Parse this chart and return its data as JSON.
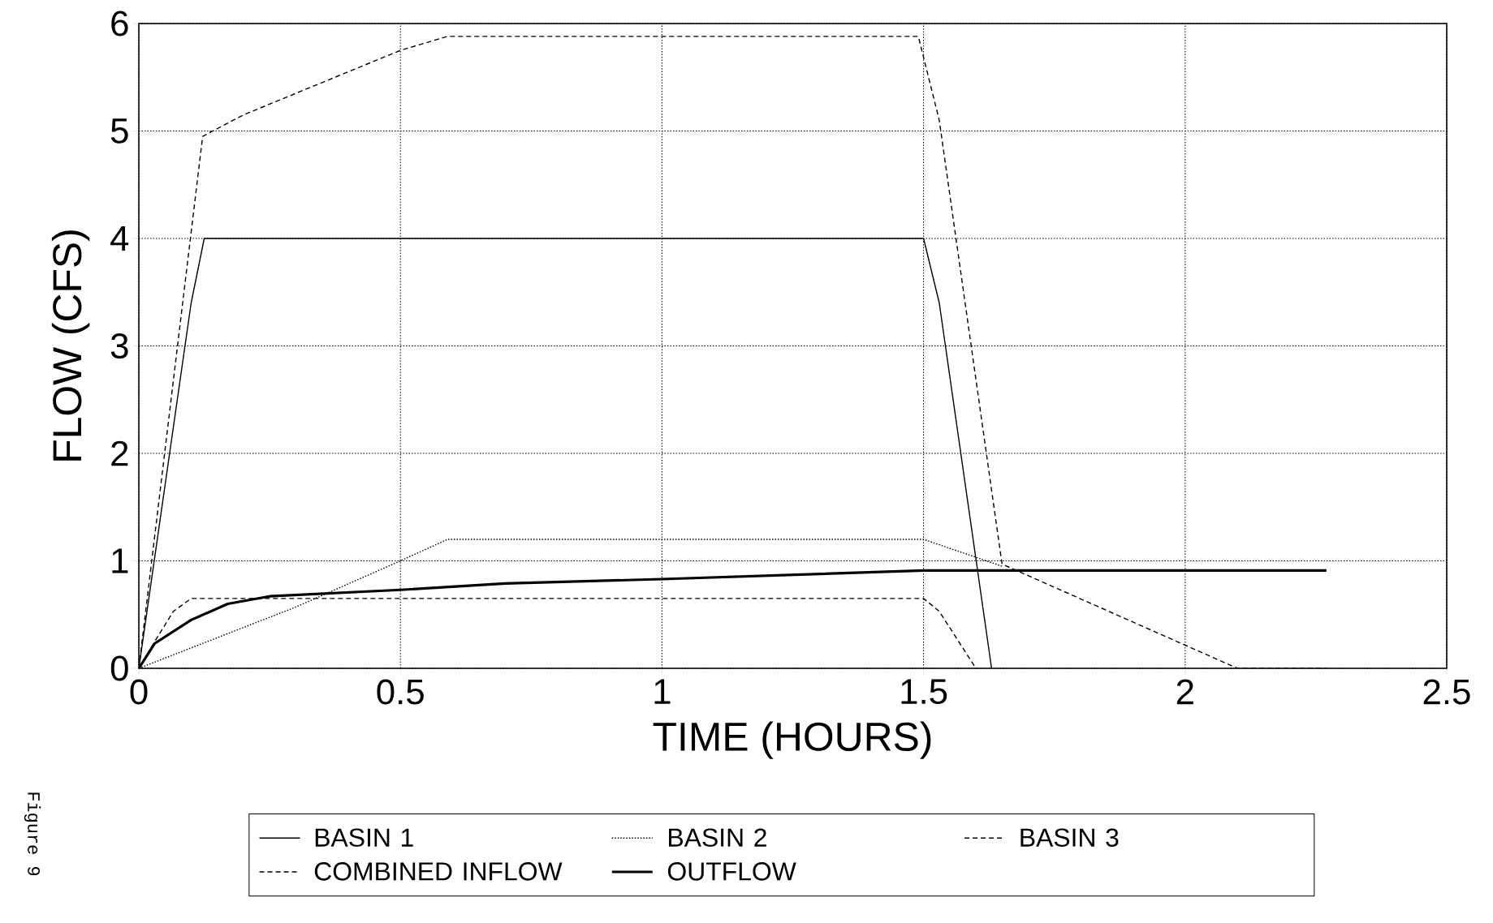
{
  "chart_data": {
    "type": "line",
    "xlabel": "TIME (HOURS)",
    "ylabel": "FLOW (CFS)",
    "xlim": [
      0,
      2.5
    ],
    "ylim": [
      0,
      6
    ],
    "xticks": [
      0,
      0.5,
      1,
      1.5,
      2,
      2.5
    ],
    "yticks": [
      0,
      1,
      2,
      3,
      4,
      5,
      6
    ],
    "grid": true,
    "legend": "bottom",
    "annotations": [
      "Figure 9"
    ],
    "series": [
      {
        "name": "BASIN 1",
        "color": "#000000",
        "line_style": "solid",
        "x": [
          0,
          0.1,
          0.125,
          1.5,
          1.53,
          1.63
        ],
        "values": [
          0,
          3.4,
          4,
          4,
          3.4,
          0
        ]
      },
      {
        "name": "BASIN 2",
        "color": "#000000",
        "line_style": "dotted",
        "x": [
          0,
          0.3,
          0.5,
          0.59,
          1.5,
          1.65
        ],
        "values": [
          0,
          0.57,
          1.0,
          1.2,
          1.2,
          0.95
        ]
      },
      {
        "name": "BASIN 3",
        "color": "#000000",
        "line_style": "dashed",
        "x": [
          0,
          0.033,
          0.066,
          0.1,
          1.5,
          1.53,
          1.6
        ],
        "values": [
          0,
          0.27,
          0.53,
          0.65,
          0.65,
          0.53,
          0
        ]
      },
      {
        "name": "COMBINED INFLOW",
        "color": "#000000",
        "line_style": "dashed",
        "x": [
          0,
          0.122,
          0.2,
          0.3,
          0.4,
          0.5,
          0.59,
          1.49,
          1.53,
          1.65,
          2.1,
          2.27
        ],
        "values": [
          0,
          4.95,
          5.15,
          5.35,
          5.55,
          5.75,
          5.88,
          5.88,
          5.1,
          0.97,
          0,
          0
        ]
      },
      {
        "name": "OUTFLOW",
        "color": "#000000",
        "line_style": "solid",
        "x": [
          0,
          0.03,
          0.1,
          0.17,
          0.25,
          0.5,
          0.7,
          1.0,
          1.5,
          2.27
        ],
        "values": [
          0,
          0.23,
          0.45,
          0.6,
          0.67,
          0.73,
          0.79,
          0.83,
          0.91,
          0.91
        ]
      }
    ]
  }
}
